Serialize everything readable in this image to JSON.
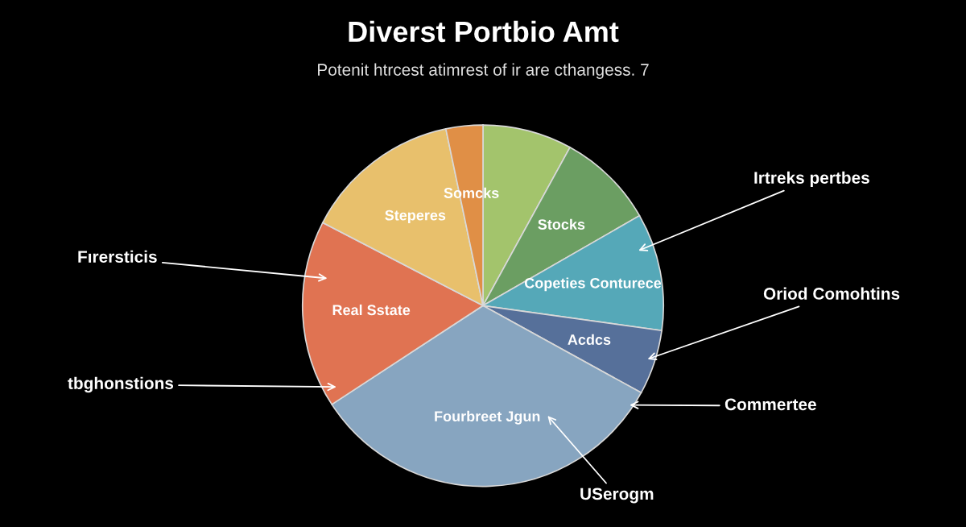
{
  "chart_data": {
    "type": "pie",
    "title": "Diverst Portbio Amt",
    "subtitle": "Potenit htrcest atimrest of ir are cthangess. 7",
    "categories": [
      null,
      "Stocks",
      "Copeties Conturece",
      "Acdcs",
      "Fourbreet Jgun",
      "Real Sstate",
      "Steperes",
      "Somcks"
    ],
    "values": [
      8.0,
      8.7,
      10.5,
      5.8,
      32.8,
      16.8,
      14.1,
      3.3
    ],
    "colors": [
      "#a3c46c",
      "#6b9e62",
      "#55a8b8",
      "#56709a",
      "#87a5c0",
      "#e07352",
      "#e8c06c",
      "#e08f46"
    ],
    "annotations": [
      "Irtreks pertbes",
      "Oriod Comohtins",
      "Commertee",
      "USerogm",
      "tbghonstions",
      "Fırersticis"
    ]
  }
}
